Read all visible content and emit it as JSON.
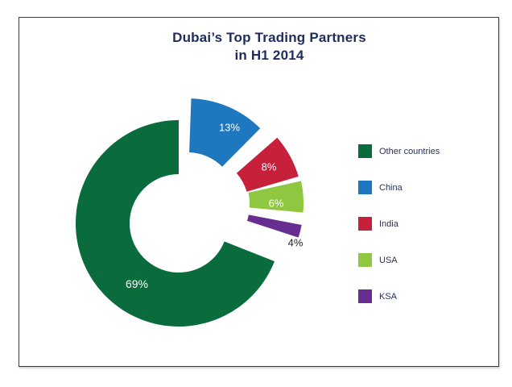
{
  "header": {
    "title_line1": "Dubai’s Top Trading Partners",
    "title_line2": "in H1 2014"
  },
  "colors": {
    "title_text": "#1e2c5f",
    "legend_text": "#27305a",
    "frame_border": "#3a3a3a",
    "label_light": "#ffffff",
    "label_dark": "#231f20"
  },
  "chart_data": {
    "type": "pie",
    "donut": true,
    "title": "Dubai’s Top Trading Partners in H1 2014",
    "legend_position": "right",
    "slices": [
      {
        "label": "Other countries",
        "value": 69,
        "pct_label": "69%",
        "color": "#0a6b3c"
      },
      {
        "label": "China",
        "value": 13,
        "pct_label": "13%",
        "color": "#1e78bf"
      },
      {
        "label": "India",
        "value": 8,
        "pct_label": "8%",
        "color": "#c7203a"
      },
      {
        "label": "USA",
        "value": 6,
        "pct_label": "6%",
        "color": "#90c740"
      },
      {
        "label": "KSA",
        "value": 4,
        "pct_label": "4%",
        "color": "#682d90"
      }
    ]
  }
}
